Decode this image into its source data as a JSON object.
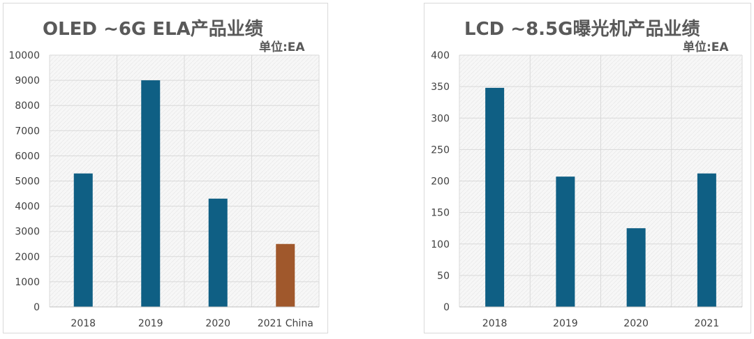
{
  "chart_data": [
    {
      "type": "bar",
      "title": "OLED ~6G ELA产品业绩",
      "unit_label": "单位:EA",
      "categories": [
        "2018",
        "2019",
        "2020",
        "2021 China"
      ],
      "values": [
        5300,
        9000,
        4300,
        2500
      ],
      "bar_colors": [
        "#0f5f84",
        "#0f5f84",
        "#0f5f84",
        "#a0582c"
      ],
      "ylim": [
        0,
        10000
      ],
      "yticks": [
        0,
        1000,
        2000,
        3000,
        4000,
        5000,
        6000,
        7000,
        8000,
        9000,
        10000
      ],
      "grid": true,
      "legend": "none"
    },
    {
      "type": "bar",
      "title": "LCD ~8.5G曝光机产品业绩",
      "unit_label": "单位:EA",
      "categories": [
        "2018",
        "2019",
        "2020",
        "2021"
      ],
      "values": [
        348,
        207,
        125,
        212
      ],
      "bar_colors": [
        "#0f5f84",
        "#0f5f84",
        "#0f5f84",
        "#0f5f84"
      ],
      "ylim": [
        0,
        400
      ],
      "yticks": [
        0,
        50,
        100,
        150,
        200,
        250,
        300,
        350,
        400
      ],
      "grid": true,
      "legend": "none"
    }
  ],
  "colors": {
    "bar": "#0f5f84",
    "highlight_bar": "#a0582c",
    "text": "#595959",
    "grid": "#d9d9d9"
  }
}
